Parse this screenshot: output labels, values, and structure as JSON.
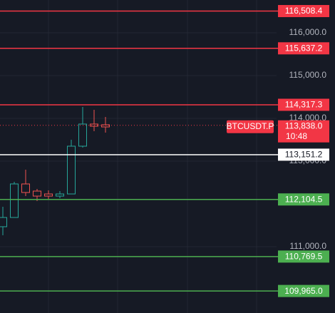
{
  "chart_data": {
    "type": "candlestick",
    "series": [
      {
        "up_color": "#26a69a",
        "down_color": "#ef5350",
        "open": [
          111467,
          111683,
          112467,
          112300,
          112233,
          112183,
          112233,
          113350,
          113867,
          113850
        ],
        "high": [
          111933,
          112517,
          112800,
          112350,
          112317,
          112300,
          113500,
          114267,
          114200,
          114033
        ],
        "low": [
          111267,
          111683,
          112183,
          112067,
          112100,
          112133,
          112233,
          113317,
          113700,
          113667
        ],
        "close": [
          111683,
          112467,
          112267,
          112183,
          112183,
          112233,
          113350,
          113867,
          113817,
          113800
        ]
      }
    ],
    "ylim": [
      109450,
      116767
    ],
    "yticks": [
      {
        "value": 116000,
        "label": "116,000.0"
      },
      {
        "value": 115000,
        "label": "115,000.0"
      },
      {
        "value": 114000,
        "label": "114,000.0"
      },
      {
        "value": 113000,
        "label": "113,000.0"
      },
      {
        "value": 111000,
        "label": "111,000.0"
      }
    ],
    "grid": true,
    "levels": [
      {
        "value": 116508.4,
        "label": "116,508.4",
        "color": "#f23645"
      },
      {
        "value": 115637.2,
        "label": "115,637.2",
        "color": "#f23645"
      },
      {
        "value": 114317.3,
        "label": "114,317.3",
        "color": "#f23645"
      },
      {
        "value": 113151.2,
        "label": "113,151.2",
        "color": "#ffffff"
      },
      {
        "value": 112104.5,
        "label": "112,104.5",
        "color": "#4caf50"
      },
      {
        "value": 110769.5,
        "label": "110,769.5",
        "color": "#4caf50"
      },
      {
        "value": 109965.0,
        "label": "109,965.0",
        "color": "#4caf50"
      }
    ],
    "current_price": {
      "value": 113838.0,
      "label": "113,838.0",
      "symbol": "BTCUSDT.P",
      "countdown": "10:48",
      "color": "#f23645"
    }
  }
}
